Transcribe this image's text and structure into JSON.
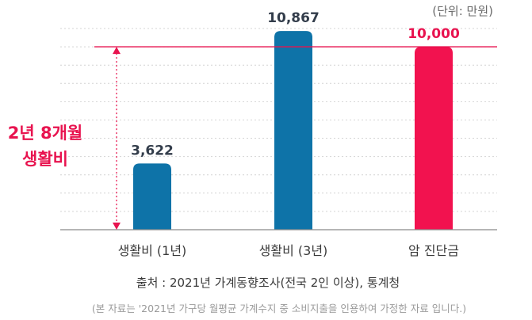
{
  "chart_data": {
    "type": "bar",
    "unit_label": "(단위: 만원)",
    "categories": [
      "생활비 (1년)",
      "생활비 (3년)",
      "암 진단금"
    ],
    "values": [
      3622,
      10867,
      10000
    ],
    "value_labels": [
      "3,622",
      "10,867",
      "10,000"
    ],
    "ylim": [
      0,
      11000
    ],
    "grid": true,
    "reference_line": {
      "value": 10000
    },
    "annotation": {
      "lines": [
        "2년 8개월",
        "생활비"
      ],
      "from": 0,
      "to": 10000
    },
    "colors": {
      "bar": "#0e73a8",
      "highlight": "#f2124f",
      "accent": "#e8134f"
    },
    "highlight_index": 2
  },
  "source": "출처 : 2021년 가계동향조사(전국 2인 이상), 통계청",
  "note": "(본 자료는 '2021년 가구당 월평균 가계수지 중 소비지출을 인용하여 가정한 자료 입니다.)"
}
